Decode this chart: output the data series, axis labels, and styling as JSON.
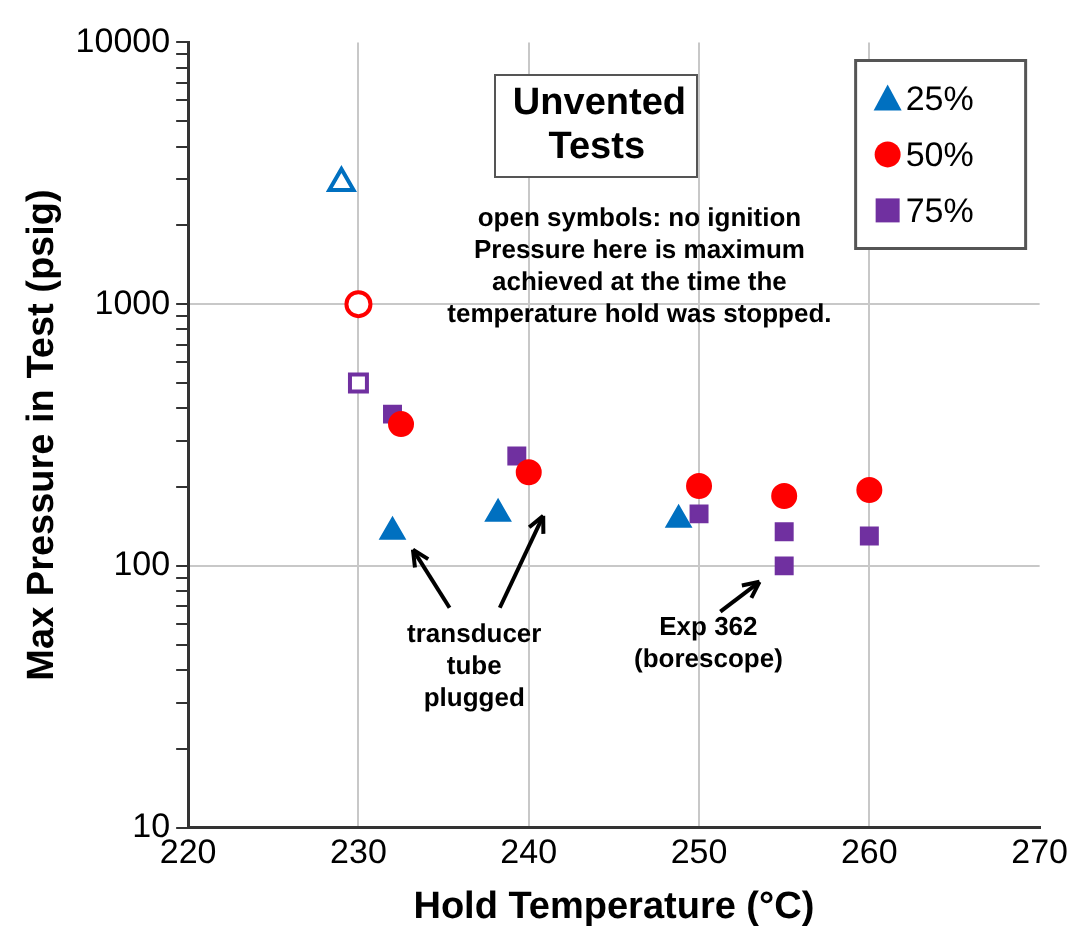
{
  "chart_data": {
    "type": "scatter",
    "title": "Unvented Tests",
    "xlabel": "Hold Temperature (°C)",
    "ylabel": "Max Pressure in Test (psig)",
    "series": [
      {
        "name": "25%",
        "color": "#0070c0",
        "marker": "triangle",
        "x": [
          232,
          238.2,
          248.8
        ],
        "values": [
          135,
          158,
          150
        ]
      },
      {
        "name": "50%",
        "color": "#ff0000",
        "marker": "circle",
        "x": [
          232.5,
          240,
          250,
          255,
          260
        ],
        "values": [
          348,
          228,
          202,
          185,
          195
        ]
      },
      {
        "name": "75%",
        "color": "#7030a0",
        "marker": "square",
        "x": [
          232,
          239.3,
          250,
          255,
          255,
          260
        ],
        "values": [
          380,
          263,
          158,
          135,
          100,
          130
        ]
      },
      {
        "color": "#0070c0",
        "marker": "triangle",
        "x": [
          229
        ],
        "values": [
          2900
        ]
      },
      {
        "color": "#ff0000",
        "marker": "circle",
        "x": [
          230
        ],
        "values": [
          1000
        ]
      },
      {
        "color": "#7030a0",
        "marker": "square",
        "x": [
          230
        ],
        "values": [
          500
        ]
      }
    ],
    "annotations": [
      "open symbols: no ignition\nPressure here is maximum\nachieved at the time the\ntemperature hold was stopped.",
      "transducer\ntube\nplugged",
      "Exp 362\n(borescope)"
    ],
    "log": "y",
    "grid": true,
    "legend": "top right",
    "xlim": [
      220,
      270
    ],
    "xticks": [
      220,
      230,
      240,
      250,
      260,
      270
    ],
    "ylim": [
      10,
      10000
    ],
    "yticks": [
      10,
      {
        "value": 20,
        "label": null
      },
      {
        "value": 30,
        "label": null
      },
      {
        "value": 40,
        "label": null
      },
      {
        "value": 50,
        "label": null
      },
      {
        "value": 60,
        "label": null
      },
      {
        "value": 70,
        "label": null
      },
      {
        "value": 80,
        "label": null
      },
      {
        "value": 90,
        "label": null
      },
      100,
      {
        "value": 200,
        "label": null
      },
      {
        "value": 300,
        "label": null
      },
      {
        "value": 400,
        "label": null
      },
      {
        "value": 500,
        "label": null
      },
      {
        "value": 600,
        "label": null
      },
      {
        "value": 700,
        "label": null
      },
      {
        "value": 800,
        "label": null
      },
      {
        "value": 900,
        "label": null
      },
      1000,
      {
        "value": 2000,
        "label": null
      },
      {
        "value": 3000,
        "label": null
      },
      {
        "value": 4000,
        "label": null
      },
      {
        "value": 5000,
        "label": null
      },
      {
        "value": 6000,
        "label": null
      },
      {
        "value": 7000,
        "label": null
      },
      {
        "value": 8000,
        "label": null
      },
      {
        "value": 9000,
        "label": null
      },
      10000
    ]
  }
}
